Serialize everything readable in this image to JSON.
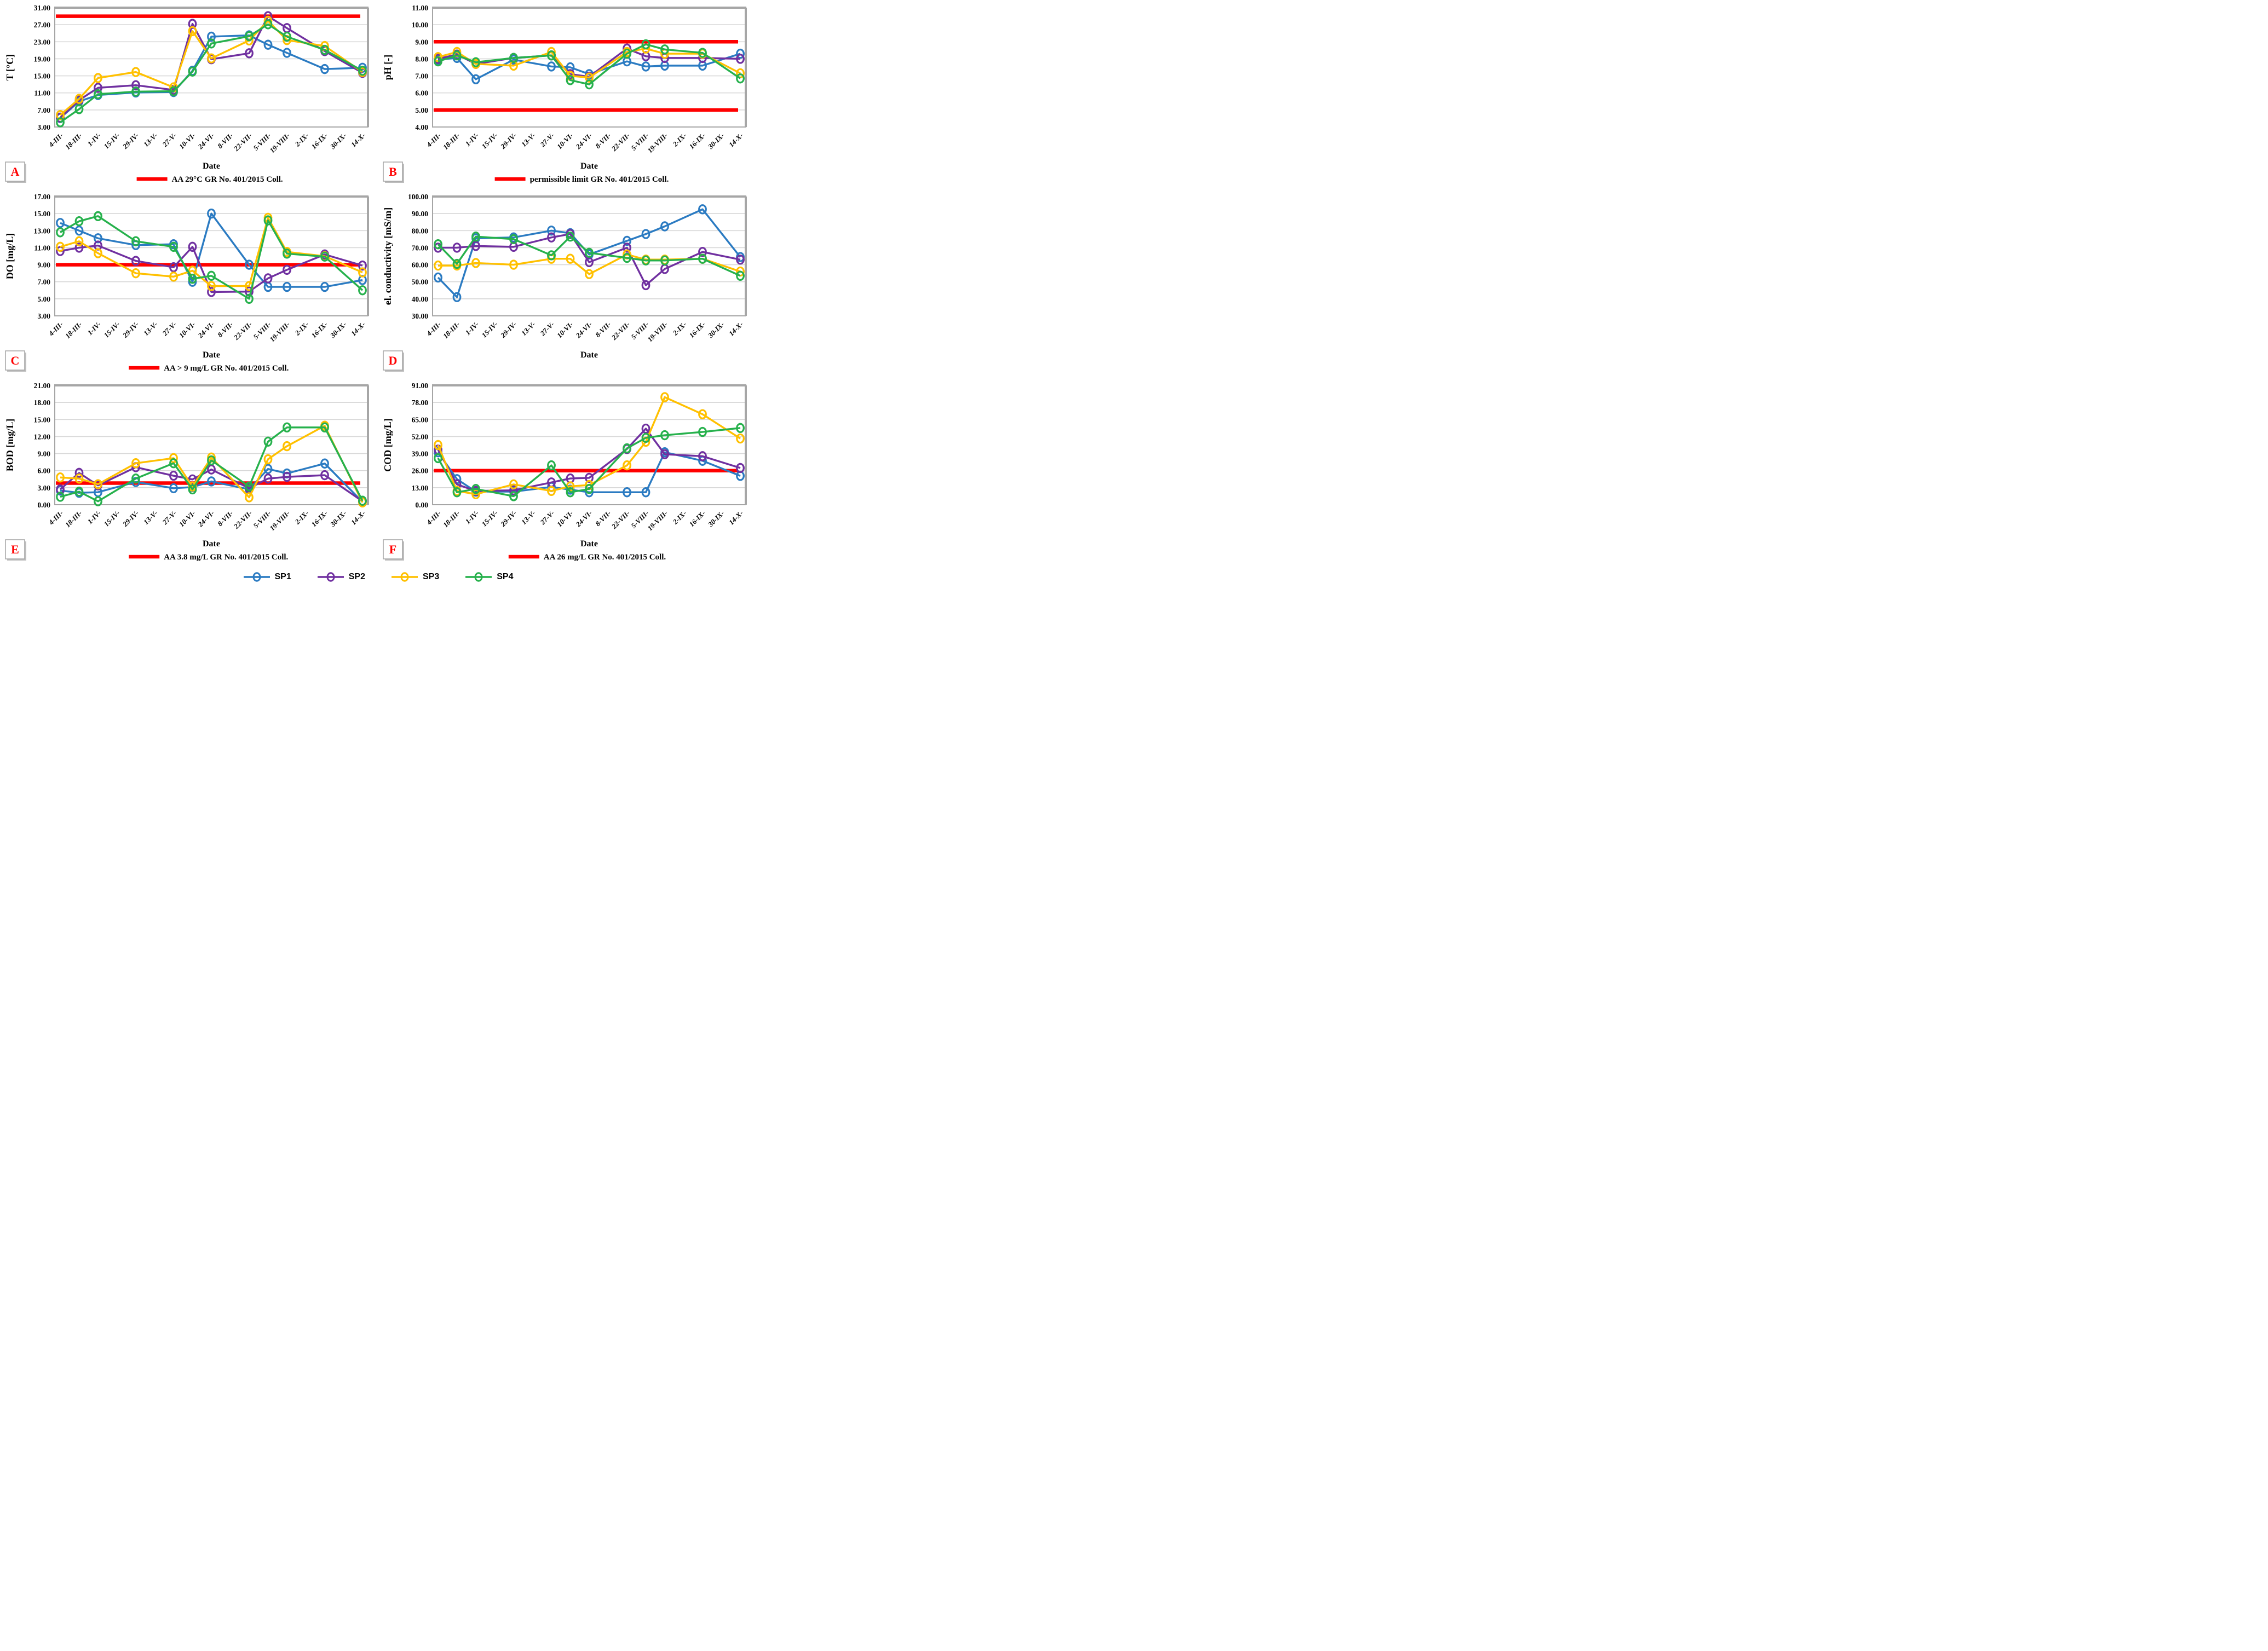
{
  "page": {
    "background": "#ffffff"
  },
  "categories": [
    "4-III-",
    "18-III-",
    "1-IV-",
    "15-IV-",
    "29-IV-",
    "13-V-",
    "27-V-",
    "10-VI-",
    "24-VI-",
    "8-VII-",
    "22-VII-",
    "5-VIII-",
    "19-VIII-",
    "2-IX-",
    "16-IX-",
    "30-IX-",
    "14-X-"
  ],
  "data_indices": [
    0,
    1,
    2,
    4,
    6,
    7,
    8,
    10,
    11,
    12,
    14,
    16
  ],
  "colors": {
    "SP1": "#2B7BC2",
    "SP2": "#7030A0",
    "SP3": "#FFC000",
    "SP4": "#26B14C",
    "limit": "#FF0000",
    "grid": "#D8D8D8",
    "axis": "#A6A6A6",
    "letter": "#FF0000"
  },
  "legend": {
    "items": [
      {
        "label": "SP1",
        "color": "#2B7BC2"
      },
      {
        "label": "SP2",
        "color": "#7030A0"
      },
      {
        "label": "SP3",
        "color": "#FFC000"
      },
      {
        "label": "SP4",
        "color": "#26B14C"
      }
    ]
  },
  "chart_data": [
    {
      "id": "A",
      "type": "line",
      "ylabel": "T [°C]",
      "xlabel": "Date",
      "ymin": 3,
      "ymax": 31,
      "ystep": 4,
      "limit_lines": [
        29
      ],
      "limit_label": "AA 29°C GR No. 401/2015 Coll.",
      "series": [
        {
          "name": "SP1",
          "values": [
            5.1,
            9.0,
            10.5,
            11.1,
            11.2,
            16.2,
            24.2,
            24.5,
            22.3,
            20.4,
            16.6,
            16.9
          ]
        },
        {
          "name": "SP2",
          "values": [
            5.2,
            9.3,
            12.2,
            12.8,
            11.7,
            27.2,
            18.9,
            20.3,
            29.0,
            26.2,
            20.8,
            15.7
          ]
        },
        {
          "name": "SP3",
          "values": [
            5.8,
            9.6,
            14.5,
            15.9,
            12.3,
            25.5,
            19.1,
            23.3,
            27.9,
            23.4,
            22.0,
            15.9
          ]
        },
        {
          "name": "SP4",
          "values": [
            4.1,
            7.2,
            10.7,
            11.3,
            11.4,
            16.0,
            22.6,
            24.3,
            27.1,
            24.2,
            21.1,
            16.2
          ]
        }
      ]
    },
    {
      "id": "B",
      "type": "line",
      "ylabel": "pH [-]",
      "xlabel": "Date",
      "ymin": 4,
      "ymax": 11,
      "ystep": 1,
      "limit_lines": [
        9,
        5
      ],
      "limit_label": "permissible limit GR No. 401/2015 Coll.",
      "series": [
        {
          "name": "SP1",
          "values": [
            7.95,
            8.05,
            6.8,
            7.95,
            7.55,
            7.5,
            7.1,
            7.85,
            7.55,
            7.6,
            7.6,
            8.3
          ]
        },
        {
          "name": "SP2",
          "values": [
            8.0,
            8.25,
            7.7,
            8.05,
            8.2,
            7.1,
            6.95,
            8.6,
            8.15,
            8.05,
            8.05,
            8.0
          ]
        },
        {
          "name": "SP3",
          "values": [
            8.1,
            8.4,
            7.7,
            7.6,
            8.4,
            7.0,
            6.9,
            8.4,
            8.6,
            8.3,
            8.3,
            7.15
          ]
        },
        {
          "name": "SP4",
          "values": [
            7.85,
            8.2,
            7.8,
            8.05,
            8.2,
            6.75,
            6.5,
            8.3,
            8.85,
            8.55,
            8.35,
            6.85
          ]
        }
      ]
    },
    {
      "id": "C",
      "type": "line",
      "ylabel": "DO [mg/L]",
      "xlabel": "Date",
      "ymin": 3,
      "ymax": 17,
      "ystep": 2,
      "limit_lines": [
        9
      ],
      "limit_label": "AA > 9 mg/L GR No. 401/2015 Coll.",
      "series": [
        {
          "name": "SP1",
          "values": [
            13.9,
            13.0,
            12.1,
            11.3,
            11.4,
            7.0,
            15.0,
            9.0,
            6.4,
            6.4,
            6.4,
            7.2
          ]
        },
        {
          "name": "SP2",
          "values": [
            10.6,
            11.0,
            11.25,
            9.45,
            8.7,
            11.1,
            5.8,
            5.85,
            7.4,
            8.4,
            10.2,
            8.9
          ]
        },
        {
          "name": "SP3",
          "values": [
            11.1,
            11.75,
            10.35,
            8.0,
            7.6,
            8.3,
            6.5,
            6.5,
            14.5,
            10.5,
            10.0,
            8.1
          ]
        },
        {
          "name": "SP4",
          "values": [
            12.8,
            14.1,
            14.7,
            11.75,
            11.1,
            7.35,
            7.7,
            5.0,
            14.2,
            10.3,
            9.95,
            6.0
          ]
        }
      ]
    },
    {
      "id": "D",
      "type": "line",
      "ylabel": "el. conductivity [mS/m]",
      "xlabel": "Date",
      "ymin": 30,
      "ymax": 100,
      "ystep": 10,
      "limit_lines": [],
      "limit_label": null,
      "series": [
        {
          "name": "SP1",
          "values": [
            52.5,
            41,
            75.5,
            76,
            80,
            78.5,
            66,
            74,
            78,
            82.5,
            92.5,
            64.5
          ]
        },
        {
          "name": "SP2",
          "values": [
            70,
            70,
            71,
            70.5,
            76,
            78,
            61.5,
            70,
            48,
            57.5,
            67.5,
            63
          ]
        },
        {
          "name": "SP3",
          "values": [
            59.5,
            59.5,
            61,
            60,
            63.5,
            63.5,
            54.5,
            66,
            63,
            63,
            63.5,
            56
          ]
        },
        {
          "name": "SP4",
          "values": [
            72,
            60.5,
            76.5,
            75,
            65.5,
            76.5,
            67,
            64,
            62.5,
            62.5,
            63.5,
            53.5
          ]
        }
      ]
    },
    {
      "id": "E",
      "type": "line",
      "ylabel": "BOD [mg/L]",
      "xlabel": "Date",
      "ymin": 0,
      "ymax": 21,
      "ystep": 3,
      "limit_lines": [
        3.8
      ],
      "limit_label": "AA 3.8 mg/L GR No. 401/2015 Coll.",
      "series": [
        {
          "name": "SP1",
          "values": [
            2.5,
            2.1,
            2.2,
            4.0,
            2.9,
            3.1,
            4.1,
            2.7,
            6.3,
            5.5,
            7.25,
            0.5
          ]
        },
        {
          "name": "SP2",
          "values": [
            2.7,
            5.6,
            3.4,
            6.6,
            5.1,
            4.45,
            6.2,
            2.9,
            4.6,
            4.9,
            5.2,
            0.6
          ]
        },
        {
          "name": "SP3",
          "values": [
            4.8,
            4.6,
            3.6,
            7.3,
            8.2,
            3.2,
            8.3,
            1.3,
            8.0,
            10.3,
            13.9,
            0.4
          ]
        },
        {
          "name": "SP4",
          "values": [
            1.4,
            2.3,
            0.6,
            4.6,
            7.3,
            2.7,
            7.8,
            3.2,
            11.1,
            13.6,
            13.6,
            0.7
          ]
        }
      ]
    },
    {
      "id": "F",
      "type": "line",
      "ylabel": "COD [mg/L]",
      "xlabel": "Date",
      "ymin": 0,
      "ymax": 91,
      "ystep": 13,
      "limit_lines": [
        26
      ],
      "limit_label": "AA 26 mg/L GR No. 401/2015 Coll.",
      "series": [
        {
          "name": "SP1",
          "values": [
            40,
            19.5,
            10,
            10,
            13.5,
            11.5,
            9.5,
            9.5,
            9.5,
            40,
            33.5,
            22
          ]
        },
        {
          "name": "SP2",
          "values": [
            42,
            15.5,
            10.5,
            11,
            17,
            20,
            20.5,
            42.5,
            58,
            38.5,
            37,
            28
          ]
        },
        {
          "name": "SP3",
          "values": [
            45.5,
            10.5,
            8,
            15.5,
            10.5,
            14,
            15,
            30,
            48,
            82,
            69,
            50.5
          ]
        },
        {
          "name": "SP4",
          "values": [
            35.5,
            9.5,
            12,
            6.5,
            30,
            9.5,
            12,
            43,
            51,
            53,
            55.5,
            58.5
          ]
        }
      ]
    }
  ]
}
